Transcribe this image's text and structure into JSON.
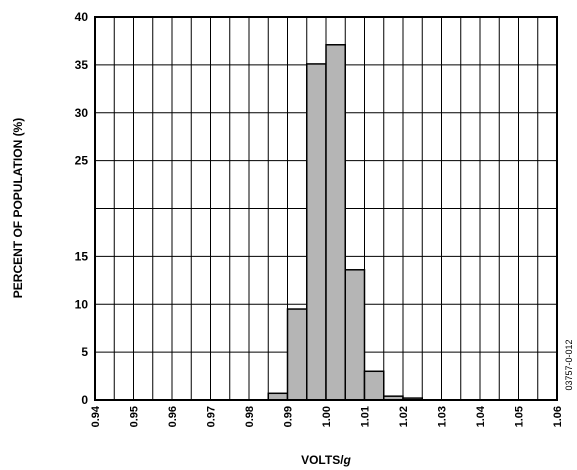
{
  "chart_data": {
    "type": "bar",
    "xlabel_main": "VOLTS/",
    "xlabel_italic": "g",
    "ylabel": "PERCENT OF POPULATION (%)",
    "figure_code": "03757-0-012",
    "ylim": [
      0,
      40
    ],
    "yticks": [
      "0",
      "5",
      "10",
      "15",
      "25",
      "30",
      "35",
      "40"
    ],
    "yticks_values": [
      0,
      5,
      10,
      15,
      25,
      30,
      35,
      40
    ],
    "xlim": [
      0.94,
      1.06
    ],
    "xticks": [
      "0.94",
      "0.95",
      "0.96",
      "0.97",
      "0.98",
      "0.99",
      "1.00",
      "1.01",
      "1.02",
      "1.03",
      "1.04",
      "1.05",
      "1.06"
    ],
    "bin_width": 0.005,
    "bins": [
      {
        "x0": 0.985,
        "value": 0.7
      },
      {
        "x0": 0.99,
        "value": 9.5
      },
      {
        "x0": 0.995,
        "value": 35.1
      },
      {
        "x0": 1.0,
        "value": 37.1
      },
      {
        "x0": 1.005,
        "value": 13.6
      },
      {
        "x0": 1.01,
        "value": 3.0
      },
      {
        "x0": 1.015,
        "value": 0.4
      },
      {
        "x0": 1.02,
        "value": 0.2
      }
    ],
    "grid": true,
    "bar_color": "#b5b5b5",
    "edge_color": "#000000"
  }
}
